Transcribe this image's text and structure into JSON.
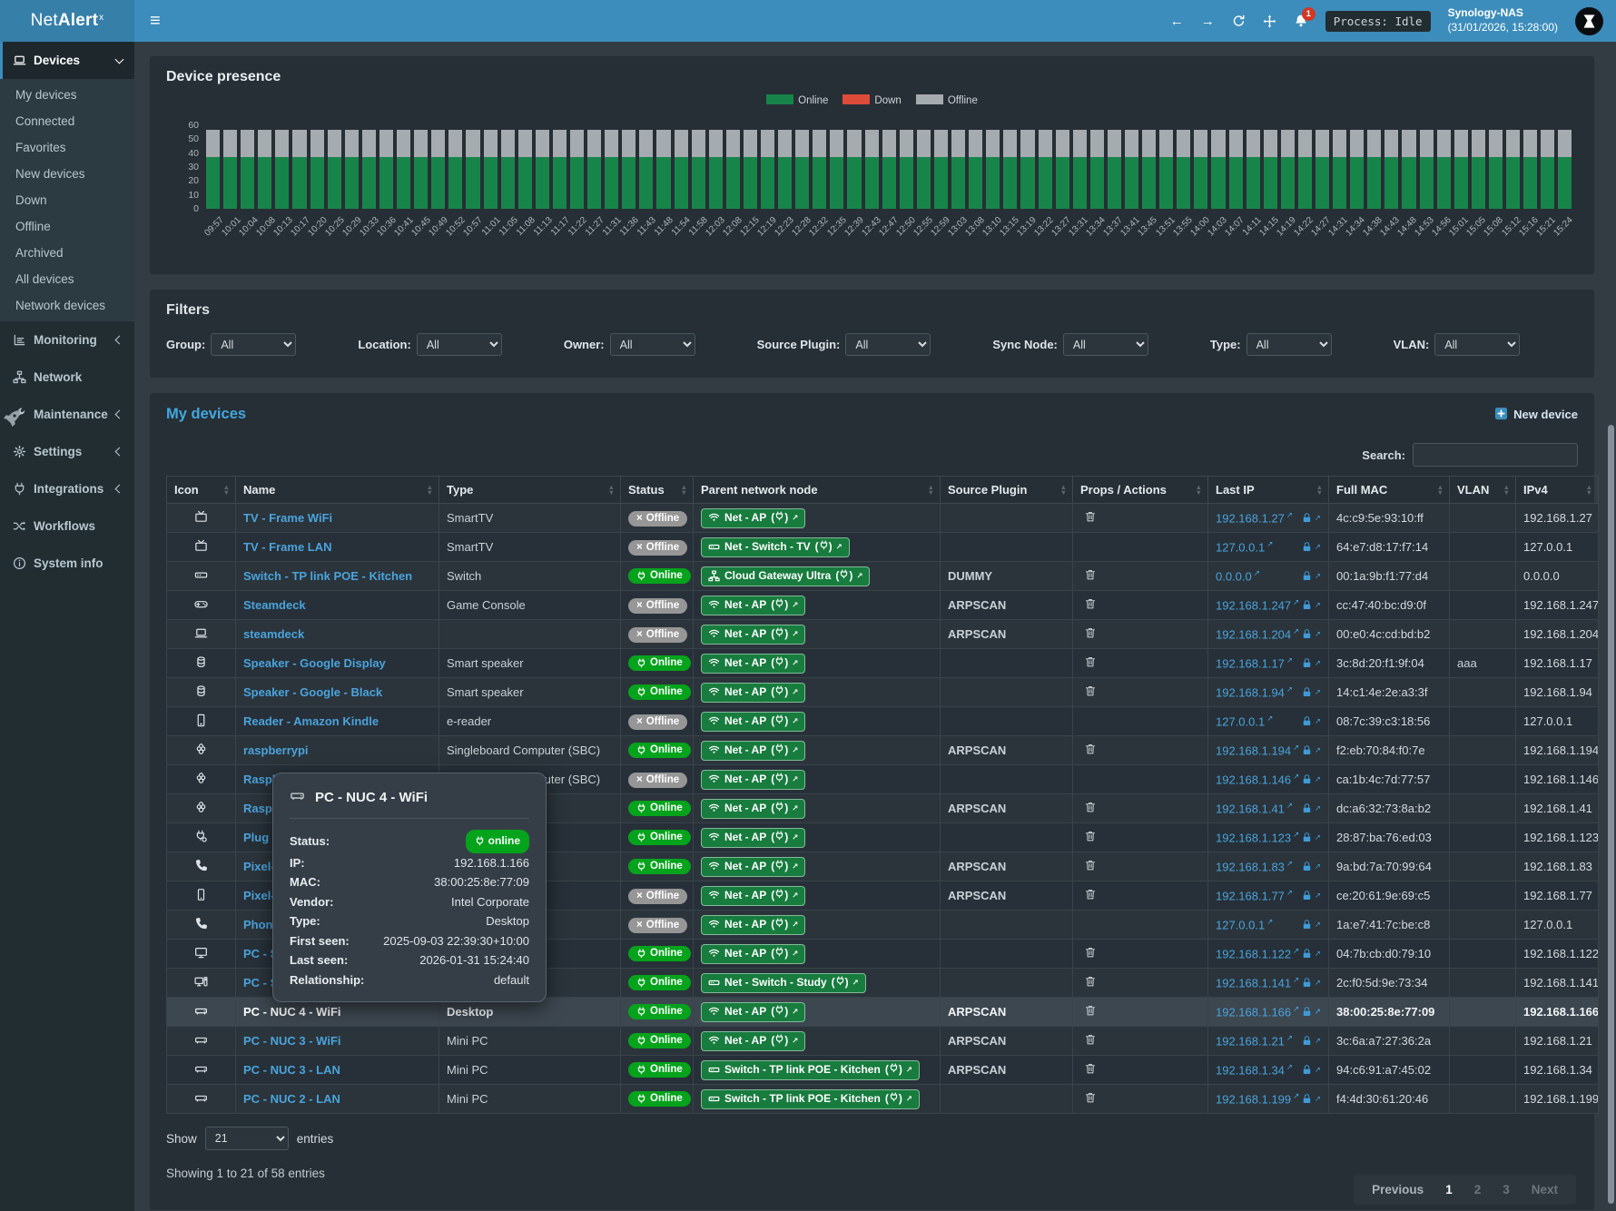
{
  "navbar": {
    "brand_prefix": "Net",
    "brand_bold": "Alert",
    "brand_sup": "x",
    "menu_icon": "hamburger-icon",
    "notification_count": "1",
    "process_badge": "Process: Idle",
    "host_name": "Synology-NAS",
    "host_time": "(31/01/2026, 15:28:00)"
  },
  "sidebar": {
    "sections": [
      {
        "label": "Devices",
        "icon": "laptop",
        "chevron": "down",
        "active": true,
        "submenu": [
          "My devices",
          "Connected",
          "Favorites",
          "New devices",
          "Down",
          "Offline",
          "Archived",
          "All devices",
          "Network devices"
        ]
      },
      {
        "label": "Monitoring",
        "icon": "chart",
        "chevron": "left"
      },
      {
        "label": "Network",
        "icon": "sitemap"
      },
      {
        "label": "Maintenance",
        "icon": "wrench",
        "chevron": "left"
      },
      {
        "label": "Settings",
        "icon": "gear",
        "chevron": "left"
      },
      {
        "label": "Integrations",
        "icon": "plug",
        "chevron": "left"
      },
      {
        "label": "Workflows",
        "icon": "shuffle"
      },
      {
        "label": "System info",
        "icon": "info"
      }
    ]
  },
  "presence": {
    "title": "Device presence"
  },
  "chart_data": {
    "type": "bar",
    "stacked": true,
    "title": "Device presence",
    "legend_position": "top-center",
    "grid": false,
    "ylim": [
      0,
      60
    ],
    "yticks": [
      0,
      10,
      20,
      30,
      40,
      50,
      60
    ],
    "categories": [
      "09:57",
      "10:01",
      "10:04",
      "10:08",
      "10:13",
      "10:17",
      "10:20",
      "10:25",
      "10:29",
      "10:33",
      "10:36",
      "10:41",
      "10:45",
      "10:49",
      "10:52",
      "10:57",
      "11:01",
      "11:05",
      "11:08",
      "11:13",
      "11:17",
      "11:22",
      "11:27",
      "11:31",
      "11:36",
      "11:43",
      "11:48",
      "11:54",
      "11:58",
      "12:03",
      "12:08",
      "12:15",
      "12:19",
      "12:23",
      "12:28",
      "12:32",
      "12:35",
      "12:39",
      "12:43",
      "12:47",
      "12:50",
      "12:55",
      "12:59",
      "13:03",
      "13:08",
      "13:10",
      "13:15",
      "13:19",
      "13:22",
      "13:27",
      "13:31",
      "13:34",
      "13:37",
      "13:41",
      "13:45",
      "13:51",
      "13:55",
      "14:00",
      "14:03",
      "14:07",
      "14:11",
      "14:15",
      "14:19",
      "14:22",
      "14:27",
      "14:31",
      "14:34",
      "14:38",
      "14:43",
      "14:48",
      "14:53",
      "14:56",
      "15:01",
      "15:05",
      "15:08",
      "15:12",
      "15:16",
      "15:21",
      "15:24"
    ],
    "series": [
      {
        "name": "Online",
        "color": "#17854a",
        "values": [
          37,
          37,
          37,
          37,
          37,
          37,
          37,
          37,
          37,
          37,
          37,
          37,
          37,
          37,
          37,
          37,
          37,
          37,
          37,
          37,
          37,
          37,
          37,
          37,
          37,
          37,
          37,
          37,
          37,
          37,
          37,
          37,
          37,
          37,
          37,
          37,
          37,
          37,
          37,
          37,
          37,
          37,
          37,
          37,
          37,
          37,
          37,
          37,
          37,
          37,
          37,
          37,
          37,
          37,
          37,
          37,
          37,
          37,
          37,
          37,
          37,
          37,
          37,
          37,
          37,
          37,
          37,
          37,
          37,
          37,
          37,
          37,
          37,
          37,
          37,
          37,
          37,
          37,
          37
        ]
      },
      {
        "name": "Down",
        "color": "#dd4b39",
        "values": [
          0,
          0,
          0,
          0,
          0,
          0,
          0,
          0,
          0,
          0,
          0,
          0,
          0,
          0,
          0,
          0,
          0,
          0,
          0,
          0,
          0,
          0,
          0,
          0,
          0,
          0,
          0,
          0,
          0,
          0,
          0,
          0,
          0,
          0,
          0,
          0,
          0,
          0,
          0,
          0,
          0,
          0,
          0,
          0,
          0,
          0,
          0,
          0,
          0,
          0,
          0,
          0,
          0,
          0,
          0,
          0,
          0,
          0,
          0,
          0,
          0,
          0,
          0,
          0,
          0,
          0,
          0,
          0,
          0,
          0,
          0,
          0,
          0,
          0,
          0,
          0,
          0,
          0,
          0
        ]
      },
      {
        "name": "Offline",
        "color": "#a6abb0",
        "values": [
          20,
          20,
          20,
          20,
          20,
          20,
          20,
          20,
          20,
          20,
          20,
          20,
          20,
          20,
          20,
          20,
          20,
          20,
          20,
          20,
          20,
          20,
          20,
          20,
          20,
          20,
          20,
          20,
          20,
          20,
          20,
          20,
          20,
          20,
          20,
          20,
          20,
          20,
          20,
          20,
          20,
          20,
          20,
          20,
          20,
          20,
          20,
          20,
          20,
          20,
          20,
          20,
          20,
          20,
          20,
          20,
          20,
          20,
          20,
          20,
          20,
          20,
          20,
          20,
          20,
          20,
          20,
          20,
          20,
          20,
          20,
          20,
          20,
          20,
          20,
          20,
          20,
          20,
          20
        ]
      }
    ]
  },
  "filters": {
    "title": "Filters",
    "fields": [
      {
        "label": "Group:",
        "value": "All"
      },
      {
        "label": "Location:",
        "value": "All"
      },
      {
        "label": "Owner:",
        "value": "All"
      },
      {
        "label": "Source Plugin:",
        "value": "All"
      },
      {
        "label": "Sync Node:",
        "value": "All"
      },
      {
        "label": "Type:",
        "value": "All"
      },
      {
        "label": "VLAN:",
        "value": "All"
      }
    ]
  },
  "devices": {
    "title": "My devices",
    "new_device_label": "New device",
    "search_label": "Search:",
    "search_value": "",
    "columns": [
      "Icon",
      "Name",
      "Type",
      "Status",
      "Parent network node",
      "Source Plugin",
      "Props / Actions",
      "Last IP",
      "Full MAC",
      "VLAN",
      "IPv4"
    ],
    "rows": [
      {
        "icon": "tv",
        "name": "TV - Frame WiFi",
        "type": "SmartTV",
        "status": "Offline",
        "parent_icon": "wifi",
        "parent": "Net - AP",
        "source": "",
        "trash": true,
        "ip": "192.168.1.27",
        "mac": "4c:c9:5e:93:10:ff",
        "vlan": "",
        "ipv4": "192.168.1.27"
      },
      {
        "icon": "tv",
        "name": "TV - Frame LAN",
        "type": "SmartTV",
        "status": "Offline",
        "parent_icon": "switch",
        "parent": "Net - Switch - TV",
        "source": "",
        "trash": false,
        "ip": "127.0.0.1",
        "mac": "64:e7:d8:17:f7:14",
        "vlan": "",
        "ipv4": "127.0.0.1"
      },
      {
        "icon": "switch",
        "name": "Switch - TP link POE - Kitchen",
        "type": "Switch",
        "status": "Online",
        "parent_icon": "sitemap",
        "parent": "Cloud Gateway Ultra",
        "source": "DUMMY",
        "trash": true,
        "ip": "0.0.0.0",
        "mac": "00:1a:9b:f1:77:d4",
        "vlan": "",
        "ipv4": "0.0.0.0"
      },
      {
        "icon": "gamepad",
        "name": "Steamdeck",
        "type": "Game Console",
        "status": "Offline",
        "parent_icon": "wifi",
        "parent": "Net - AP",
        "source": "ARPSCAN",
        "trash": true,
        "ip": "192.168.1.247",
        "mac": "cc:47:40:bc:d9:0f",
        "vlan": "",
        "ipv4": "192.168.1.247"
      },
      {
        "icon": "laptop",
        "name": "steamdeck",
        "type": "",
        "status": "Offline",
        "parent_icon": "wifi",
        "parent": "Net - AP",
        "source": "ARPSCAN",
        "trash": true,
        "ip": "192.168.1.204",
        "mac": "00:e0:4c:cd:bd:b2",
        "vlan": "",
        "ipv4": "192.168.1.204"
      },
      {
        "icon": "speaker",
        "name": "Speaker - Google Display",
        "type": "Smart speaker",
        "status": "Online",
        "parent_icon": "wifi",
        "parent": "Net - AP",
        "source": "",
        "trash": true,
        "ip": "192.168.1.17",
        "mac": "3c:8d:20:f1:9f:04",
        "vlan": "aaa",
        "ipv4": "192.168.1.17"
      },
      {
        "icon": "speaker",
        "name": "Speaker - Google - Black",
        "type": "Smart speaker",
        "status": "Online",
        "parent_icon": "wifi",
        "parent": "Net - AP",
        "source": "",
        "trash": true,
        "ip": "192.168.1.94",
        "mac": "14:c1:4e:2e:a3:3f",
        "vlan": "",
        "ipv4": "192.168.1.94"
      },
      {
        "icon": "tablet",
        "name": "Reader - Amazon Kindle",
        "type": "e-reader",
        "status": "Offline",
        "parent_icon": "wifi",
        "parent": "Net - AP",
        "source": "",
        "trash": false,
        "ip": "127.0.0.1",
        "mac": "08:7c:39:c3:18:56",
        "vlan": "",
        "ipv4": "127.0.0.1"
      },
      {
        "icon": "raspberry",
        "name": "raspberrypi",
        "type": "Singleboard Computer (SBC)",
        "status": "Online",
        "parent_icon": "wifi",
        "parent": "Net - AP",
        "source": "ARPSCAN",
        "trash": true,
        "ip": "192.168.1.194",
        "mac": "f2:eb:70:84:f0:7e",
        "vlan": "",
        "ipv4": "192.168.1.194"
      },
      {
        "icon": "raspberry",
        "name": "Raspber",
        "type": "Singleboard Computer (SBC)",
        "status": "Offline",
        "parent_icon": "wifi",
        "parent": "Net - AP",
        "source": "",
        "trash": false,
        "ip": "192.168.1.146",
        "mac": "ca:1b:4c:7d:77:57",
        "vlan": "",
        "ipv4": "192.168.1.146"
      },
      {
        "icon": "raspberry",
        "name": "Raspbe",
        "type": "",
        "status": "Online",
        "parent_icon": "wifi",
        "parent": "Net - AP",
        "source": "ARPSCAN",
        "trash": true,
        "ip": "192.168.1.41",
        "mac": "dc:a6:32:73:8a:b2",
        "vlan": "",
        "ipv4": "192.168.1.41"
      },
      {
        "icon": "plug-device",
        "name": "Plug - T",
        "type": "",
        "status": "Online",
        "parent_icon": "wifi",
        "parent": "Net - AP",
        "source": "",
        "trash": true,
        "ip": "192.168.1.123",
        "mac": "28:87:ba:76:ed:03",
        "vlan": "",
        "ipv4": "192.168.1.123"
      },
      {
        "icon": "phone",
        "name": "Pixel-9-",
        "type": "",
        "status": "Online",
        "parent_icon": "wifi",
        "parent": "Net - AP",
        "source": "ARPSCAN",
        "trash": true,
        "ip": "192.168.1.83",
        "mac": "9a:bd:7a:70:99:64",
        "vlan": "",
        "ipv4": "192.168.1.83"
      },
      {
        "icon": "mobile",
        "name": "Pixel-9-",
        "type": "",
        "status": "Offline",
        "parent_icon": "wifi",
        "parent": "Net - AP",
        "source": "ARPSCAN",
        "trash": true,
        "ip": "192.168.1.77",
        "mac": "ce:20:61:9e:69:c5",
        "vlan": "",
        "ipv4": "192.168.1.77"
      },
      {
        "icon": "phone",
        "name": "Phone -",
        "type": "",
        "status": "Offline",
        "parent_icon": "wifi",
        "parent": "Net - AP",
        "source": "",
        "trash": false,
        "ip": "127.0.0.1",
        "mac": "1a:e7:41:7c:be:c8",
        "vlan": "",
        "ipv4": "127.0.0.1"
      },
      {
        "icon": "desktop",
        "name": "PC - S w",
        "type": "",
        "status": "Online",
        "parent_icon": "wifi",
        "parent": "Net - AP",
        "source": "",
        "trash": true,
        "ip": "192.168.1.122",
        "mac": "04:7b:cb:d0:79:10",
        "vlan": "",
        "ipv4": "192.168.1.122"
      },
      {
        "icon": "desktop-tower",
        "name": "PC - S L",
        "type": "",
        "status": "Online",
        "parent_icon": "switch",
        "parent": "Net - Switch - Study",
        "source": "",
        "trash": true,
        "ip": "192.168.1.141",
        "mac": "2c:f0:5d:9e:73:34",
        "vlan": "",
        "ipv4": "192.168.1.141"
      },
      {
        "icon": "nuc",
        "name": "PC - NUC 4 - WiFi",
        "type": "Desktop",
        "status": "Online",
        "parent_icon": "wifi",
        "parent": "Net - AP",
        "source": "ARPSCAN",
        "trash": true,
        "ip": "192.168.1.166",
        "mac": "38:00:25:8e:77:09",
        "vlan": "",
        "ipv4": "192.168.1.166",
        "highlight": true
      },
      {
        "icon": "nuc",
        "name": "PC - NUC 3 - WiFi",
        "type": "Mini PC",
        "status": "Online",
        "parent_icon": "wifi",
        "parent": "Net - AP",
        "source": "ARPSCAN",
        "trash": true,
        "ip": "192.168.1.21",
        "mac": "3c:6a:a7:27:36:2a",
        "vlan": "",
        "ipv4": "192.168.1.21"
      },
      {
        "icon": "nuc",
        "name": "PC - NUC 3 - LAN",
        "type": "Mini PC",
        "status": "Online",
        "parent_icon": "switch",
        "parent": "Switch - TP link POE - Kitchen",
        "source": "ARPSCAN",
        "trash": true,
        "ip": "192.168.1.34",
        "mac": "94:c6:91:a7:45:02",
        "vlan": "",
        "ipv4": "192.168.1.34"
      },
      {
        "icon": "nuc",
        "name": "PC - NUC 2 - LAN",
        "type": "Mini PC",
        "status": "Online",
        "parent_icon": "switch",
        "parent": "Switch - TP link POE - Kitchen",
        "source": "",
        "trash": true,
        "ip": "192.168.1.199",
        "mac": "f4:4d:30:61:20:46",
        "vlan": "",
        "ipv4": "192.168.1.199"
      }
    ],
    "show_label": "Show",
    "entries_value": "21",
    "entries_suffix": "entries",
    "summary": "Showing 1 to 21 of 58 entries",
    "pagination": {
      "previous": "Previous",
      "pages": [
        "1",
        "2",
        "3"
      ],
      "active": "1",
      "next": "Next"
    }
  },
  "tooltip": {
    "icon": "nuc",
    "title": "PC - NUC 4 - WiFi",
    "fields": [
      {
        "label": "Status:",
        "value": "online",
        "badge": true
      },
      {
        "label": "IP:",
        "value": "192.168.1.166"
      },
      {
        "label": "MAC:",
        "value": "38:00:25:8e:77:09"
      },
      {
        "label": "Vendor:",
        "value": "Intel Corporate"
      },
      {
        "label": "Type:",
        "value": "Desktop"
      },
      {
        "label": "First seen:",
        "value": "2025-09-03 22:39:30+10:00"
      },
      {
        "label": "Last seen:",
        "value": "2026-01-31 15:24:40"
      },
      {
        "label": "Relationship:",
        "value": "default"
      }
    ]
  },
  "colors": {
    "accent": "#3c8dbc",
    "online_green": "#04a31c",
    "node_badge_green": "#177c3e",
    "down_red": "#dd4b39",
    "offline_gray": "#a6abb0",
    "link_blue": "#4aa3dc"
  }
}
